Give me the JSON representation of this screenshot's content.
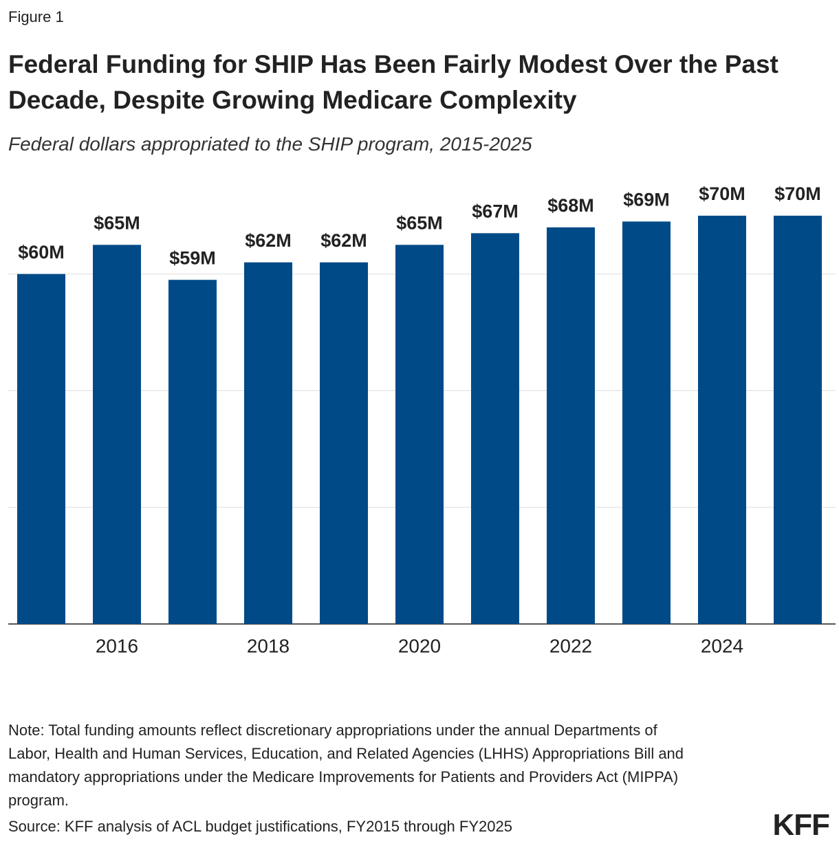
{
  "chart_data": {
    "type": "bar",
    "figure_label": "Figure 1",
    "title": "Federal Funding for SHIP Has Been Fairly Modest Over the Past Decade, Despite Growing Medicare Complexity",
    "subtitle": "Federal dollars appropriated to the SHIP program, 2015-2025",
    "categories": [
      null,
      "2016",
      null,
      "2018",
      null,
      "2020",
      null,
      "2022",
      null,
      "2024",
      null
    ],
    "values": [
      60,
      65,
      59,
      62,
      62,
      65,
      67,
      68,
      69,
      70,
      70
    ],
    "value_labels": [
      "$60M",
      "$65M",
      "$59M",
      "$62M",
      "$62M",
      "$65M",
      "$67M",
      "$68M",
      "$69M",
      "$70M",
      "$70M"
    ],
    "color": "#004a87",
    "ylim": [
      0,
      80
    ],
    "yticks": [
      0,
      20,
      40,
      60
    ],
    "grid": true,
    "note": "Note: Total funding amounts reflect discretionary appropriations under the annual Departments of Labor, Health and Human Services, Education, and Related Agencies (LHHS) Appropriations Bill and mandatory appropriations under the Medicare Improvements for Patients and Providers Act (MIPPA) program.",
    "source": "Source: KFF analysis of ACL budget justifications, FY2015 through FY2025",
    "logo": "KFF"
  }
}
